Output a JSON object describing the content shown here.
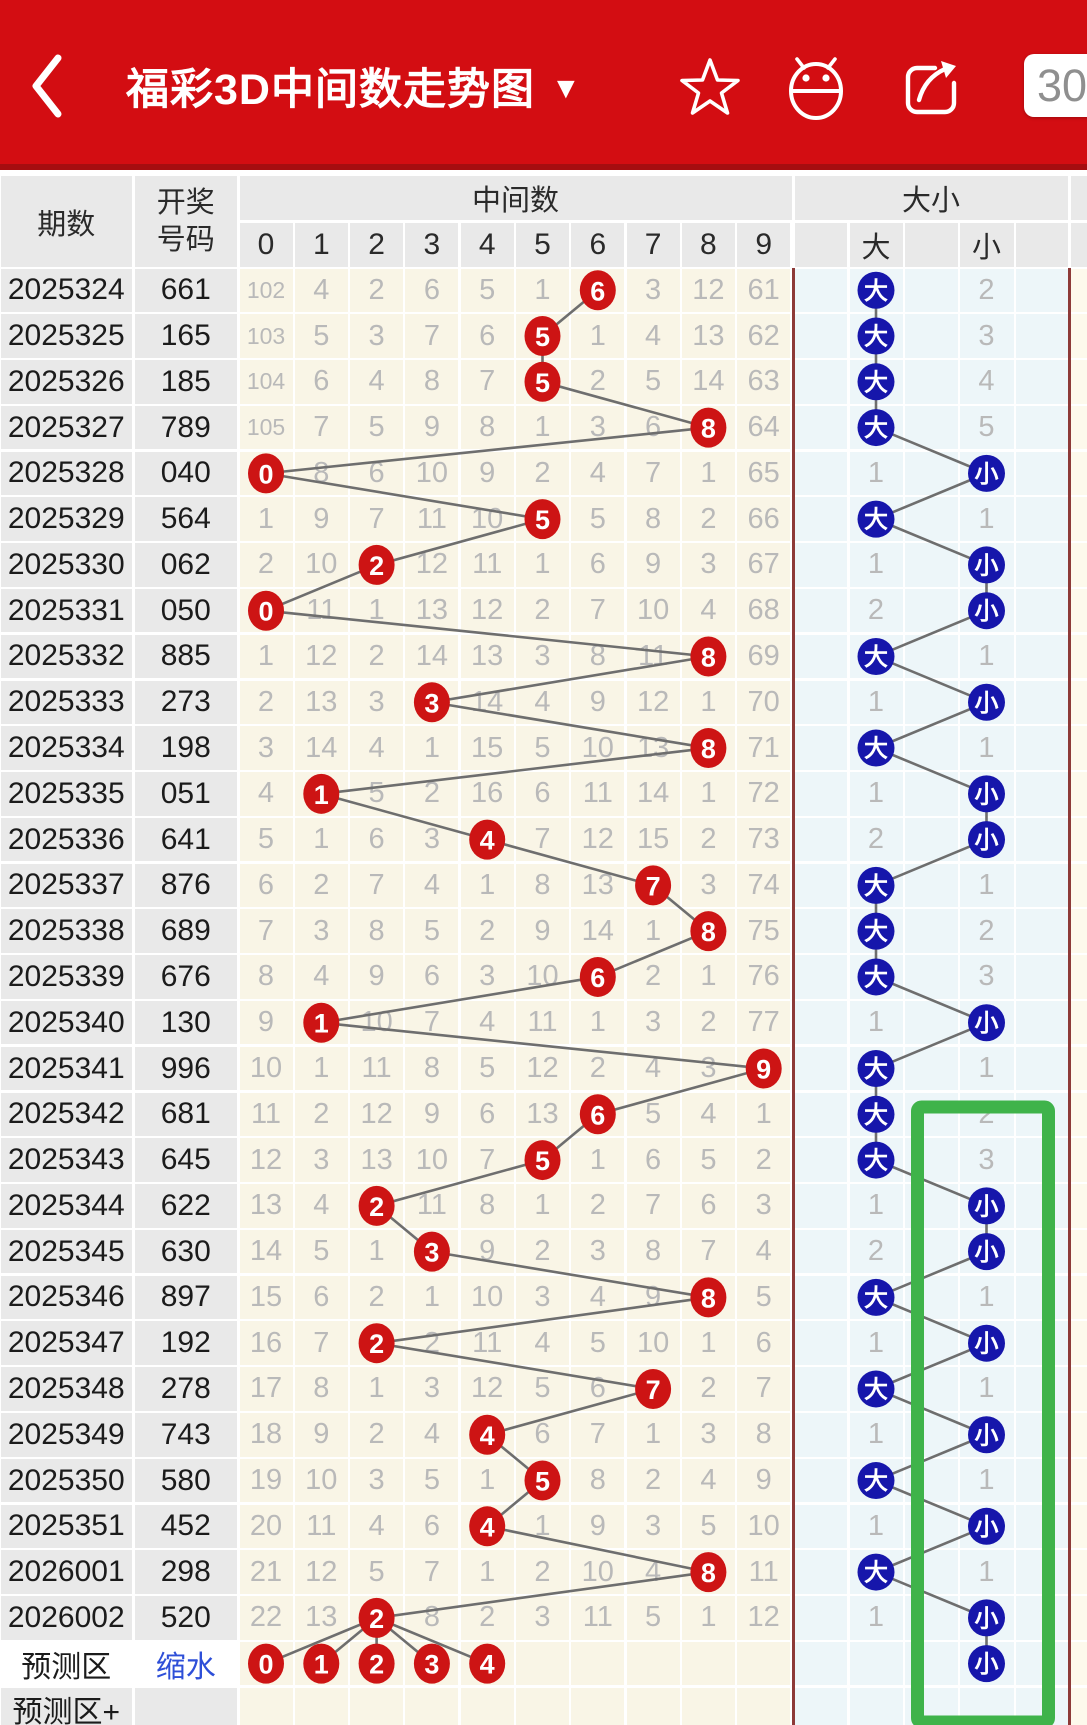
{
  "app_bar": {
    "title": "福彩3D中间数走势图",
    "dropdown_glyph": "▼",
    "issue_count": "30"
  },
  "table_header": {
    "period": "期数",
    "number_line1": "开奖",
    "number_line2": "号码",
    "middle_group": "中间数",
    "digit_columns": [
      "0",
      "1",
      "2",
      "3",
      "4",
      "5",
      "6",
      "7",
      "8",
      "9"
    ],
    "bigsmall_group": "大小",
    "da_label": "大",
    "xiao_label": "小"
  },
  "chart_data": {
    "type": "table",
    "title": "福彩3D中间数走势图",
    "rows": [
      {
        "period": "2025324",
        "number": "661",
        "cells": [
          "102",
          "4",
          "2",
          "6",
          "5",
          "1",
          "6",
          "3",
          "12",
          "61"
        ],
        "hit": 6,
        "dx": "da",
        "count": "2"
      },
      {
        "period": "2025325",
        "number": "165",
        "cells": [
          "103",
          "5",
          "3",
          "7",
          "6",
          "5",
          "1",
          "4",
          "13",
          "62"
        ],
        "hit": 5,
        "dx": "da",
        "count": "3"
      },
      {
        "period": "2025326",
        "number": "185",
        "cells": [
          "104",
          "6",
          "4",
          "8",
          "7",
          "5",
          "2",
          "5",
          "14",
          "63"
        ],
        "hit": 5,
        "dx": "da",
        "count": "4"
      },
      {
        "period": "2025327",
        "number": "789",
        "cells": [
          "105",
          "7",
          "5",
          "9",
          "8",
          "1",
          "3",
          "6",
          "8",
          "64"
        ],
        "hit": 8,
        "dx": "da",
        "count": "5"
      },
      {
        "period": "2025328",
        "number": "040",
        "cells": [
          "0",
          "8",
          "6",
          "10",
          "9",
          "2",
          "4",
          "7",
          "1",
          "65"
        ],
        "hit": 0,
        "dx": "xiao",
        "count": "1"
      },
      {
        "period": "2025329",
        "number": "564",
        "cells": [
          "1",
          "9",
          "7",
          "11",
          "10",
          "5",
          "5",
          "8",
          "2",
          "66"
        ],
        "hit": 5,
        "dx": "da",
        "count": "1"
      },
      {
        "period": "2025330",
        "number": "062",
        "cells": [
          "2",
          "10",
          "2",
          "12",
          "11",
          "1",
          "6",
          "9",
          "3",
          "67"
        ],
        "hit": 2,
        "dx": "xiao",
        "count": "1"
      },
      {
        "period": "2025331",
        "number": "050",
        "cells": [
          "0",
          "11",
          "1",
          "13",
          "12",
          "2",
          "7",
          "10",
          "4",
          "68"
        ],
        "hit": 0,
        "dx": "xiao",
        "count": "2"
      },
      {
        "period": "2025332",
        "number": "885",
        "cells": [
          "1",
          "12",
          "2",
          "14",
          "13",
          "3",
          "8",
          "11",
          "8",
          "69"
        ],
        "hit": 8,
        "dx": "da",
        "count": "1"
      },
      {
        "period": "2025333",
        "number": "273",
        "cells": [
          "2",
          "13",
          "3",
          "3",
          "14",
          "4",
          "9",
          "12",
          "1",
          "70"
        ],
        "hit": 3,
        "dx": "xiao",
        "count": "1"
      },
      {
        "period": "2025334",
        "number": "198",
        "cells": [
          "3",
          "14",
          "4",
          "1",
          "15",
          "5",
          "10",
          "13",
          "8",
          "71"
        ],
        "hit": 8,
        "dx": "da",
        "count": "1"
      },
      {
        "period": "2025335",
        "number": "051",
        "cells": [
          "4",
          "1",
          "5",
          "2",
          "16",
          "6",
          "11",
          "14",
          "1",
          "72"
        ],
        "hit": 1,
        "dx": "xiao",
        "count": "1"
      },
      {
        "period": "2025336",
        "number": "641",
        "cells": [
          "5",
          "1",
          "6",
          "3",
          "4",
          "7",
          "12",
          "15",
          "2",
          "73"
        ],
        "hit": 4,
        "dx": "xiao",
        "count": "2"
      },
      {
        "period": "2025337",
        "number": "876",
        "cells": [
          "6",
          "2",
          "7",
          "4",
          "1",
          "8",
          "13",
          "7",
          "3",
          "74"
        ],
        "hit": 7,
        "dx": "da",
        "count": "1"
      },
      {
        "period": "2025338",
        "number": "689",
        "cells": [
          "7",
          "3",
          "8",
          "5",
          "2",
          "9",
          "14",
          "1",
          "8",
          "75"
        ],
        "hit": 8,
        "dx": "da",
        "count": "2"
      },
      {
        "period": "2025339",
        "number": "676",
        "cells": [
          "8",
          "4",
          "9",
          "6",
          "3",
          "10",
          "6",
          "2",
          "1",
          "76"
        ],
        "hit": 6,
        "dx": "da",
        "count": "3"
      },
      {
        "period": "2025340",
        "number": "130",
        "cells": [
          "9",
          "1",
          "10",
          "7",
          "4",
          "11",
          "1",
          "3",
          "2",
          "77"
        ],
        "hit": 1,
        "dx": "xiao",
        "count": "1"
      },
      {
        "period": "2025341",
        "number": "996",
        "cells": [
          "10",
          "1",
          "11",
          "8",
          "5",
          "12",
          "2",
          "4",
          "3",
          "9"
        ],
        "hit": 9,
        "dx": "da",
        "count": "1"
      },
      {
        "period": "2025342",
        "number": "681",
        "cells": [
          "11",
          "2",
          "12",
          "9",
          "6",
          "13",
          "6",
          "5",
          "4",
          "1"
        ],
        "hit": 6,
        "dx": "da",
        "count": "2"
      },
      {
        "period": "2025343",
        "number": "645",
        "cells": [
          "12",
          "3",
          "13",
          "10",
          "7",
          "5",
          "1",
          "6",
          "5",
          "2"
        ],
        "hit": 5,
        "dx": "da",
        "count": "3"
      },
      {
        "period": "2025344",
        "number": "622",
        "cells": [
          "13",
          "4",
          "2",
          "11",
          "8",
          "1",
          "2",
          "7",
          "6",
          "3"
        ],
        "hit": 2,
        "dx": "xiao",
        "count": "1"
      },
      {
        "period": "2025345",
        "number": "630",
        "cells": [
          "14",
          "5",
          "1",
          "3",
          "9",
          "2",
          "3",
          "8",
          "7",
          "4"
        ],
        "hit": 3,
        "dx": "xiao",
        "count": "2"
      },
      {
        "period": "2025346",
        "number": "897",
        "cells": [
          "15",
          "6",
          "2",
          "1",
          "10",
          "3",
          "4",
          "9",
          "8",
          "5"
        ],
        "hit": 8,
        "dx": "da",
        "count": "1"
      },
      {
        "period": "2025347",
        "number": "192",
        "cells": [
          "16",
          "7",
          "2",
          "2",
          "11",
          "4",
          "5",
          "10",
          "1",
          "6"
        ],
        "hit": 2,
        "dx": "xiao",
        "count": "1"
      },
      {
        "period": "2025348",
        "number": "278",
        "cells": [
          "17",
          "8",
          "1",
          "3",
          "12",
          "5",
          "6",
          "7",
          "2",
          "7"
        ],
        "hit": 7,
        "dx": "da",
        "count": "1"
      },
      {
        "period": "2025349",
        "number": "743",
        "cells": [
          "18",
          "9",
          "2",
          "4",
          "4",
          "6",
          "7",
          "1",
          "3",
          "8"
        ],
        "hit": 4,
        "dx": "xiao",
        "count": "1"
      },
      {
        "period": "2025350",
        "number": "580",
        "cells": [
          "19",
          "10",
          "3",
          "5",
          "1",
          "5",
          "8",
          "2",
          "4",
          "9"
        ],
        "hit": 5,
        "dx": "da",
        "count": "1"
      },
      {
        "period": "2025351",
        "number": "452",
        "cells": [
          "20",
          "11",
          "4",
          "6",
          "4",
          "1",
          "9",
          "3",
          "5",
          "10"
        ],
        "hit": 4,
        "dx": "xiao",
        "count": "1"
      },
      {
        "period": "2026001",
        "number": "298",
        "cells": [
          "21",
          "12",
          "5",
          "7",
          "1",
          "2",
          "10",
          "4",
          "8",
          "11"
        ],
        "hit": 8,
        "dx": "da",
        "count": "1"
      },
      {
        "period": "2026002",
        "number": "520",
        "cells": [
          "22",
          "13",
          "2",
          "8",
          "2",
          "3",
          "11",
          "5",
          "1",
          "12"
        ],
        "hit": 2,
        "dx": "xiao",
        "count": "1"
      }
    ],
    "prediction_row": {
      "period": "预测区",
      "link": "缩水",
      "circles": [
        "0",
        "1",
        "2",
        "3",
        "4"
      ],
      "xiao": "小"
    },
    "footer_row": {
      "period": "预测区+"
    }
  },
  "annotation": {
    "green_box_column": "小",
    "green_box_from_period": "2025342",
    "green_box_to_row": "预测区+"
  },
  "colors": {
    "app_bar": "#d30d12",
    "app_bar_edge": "#a50d10",
    "header_cell": "#e9e9e9",
    "label_cell": "#e9e9e9",
    "middle_cell": "#f9f5e6",
    "bigsmall_cell": "#edf6f9",
    "next_section_cell": "#fdf9ec",
    "count_text": "#b9b9b9",
    "dark_text": "#1b1b1b",
    "header_text": "#2a2a2a",
    "red_circle": "#cd1414",
    "blue_circle": "#1616ab",
    "circle_text": "#ffffff",
    "connector": "#6e6e6e",
    "divider": "#8d3a38",
    "green_box": "#3fb34a",
    "link_blue": "#2e4fd8",
    "badge_text": "#8f8f8f"
  }
}
